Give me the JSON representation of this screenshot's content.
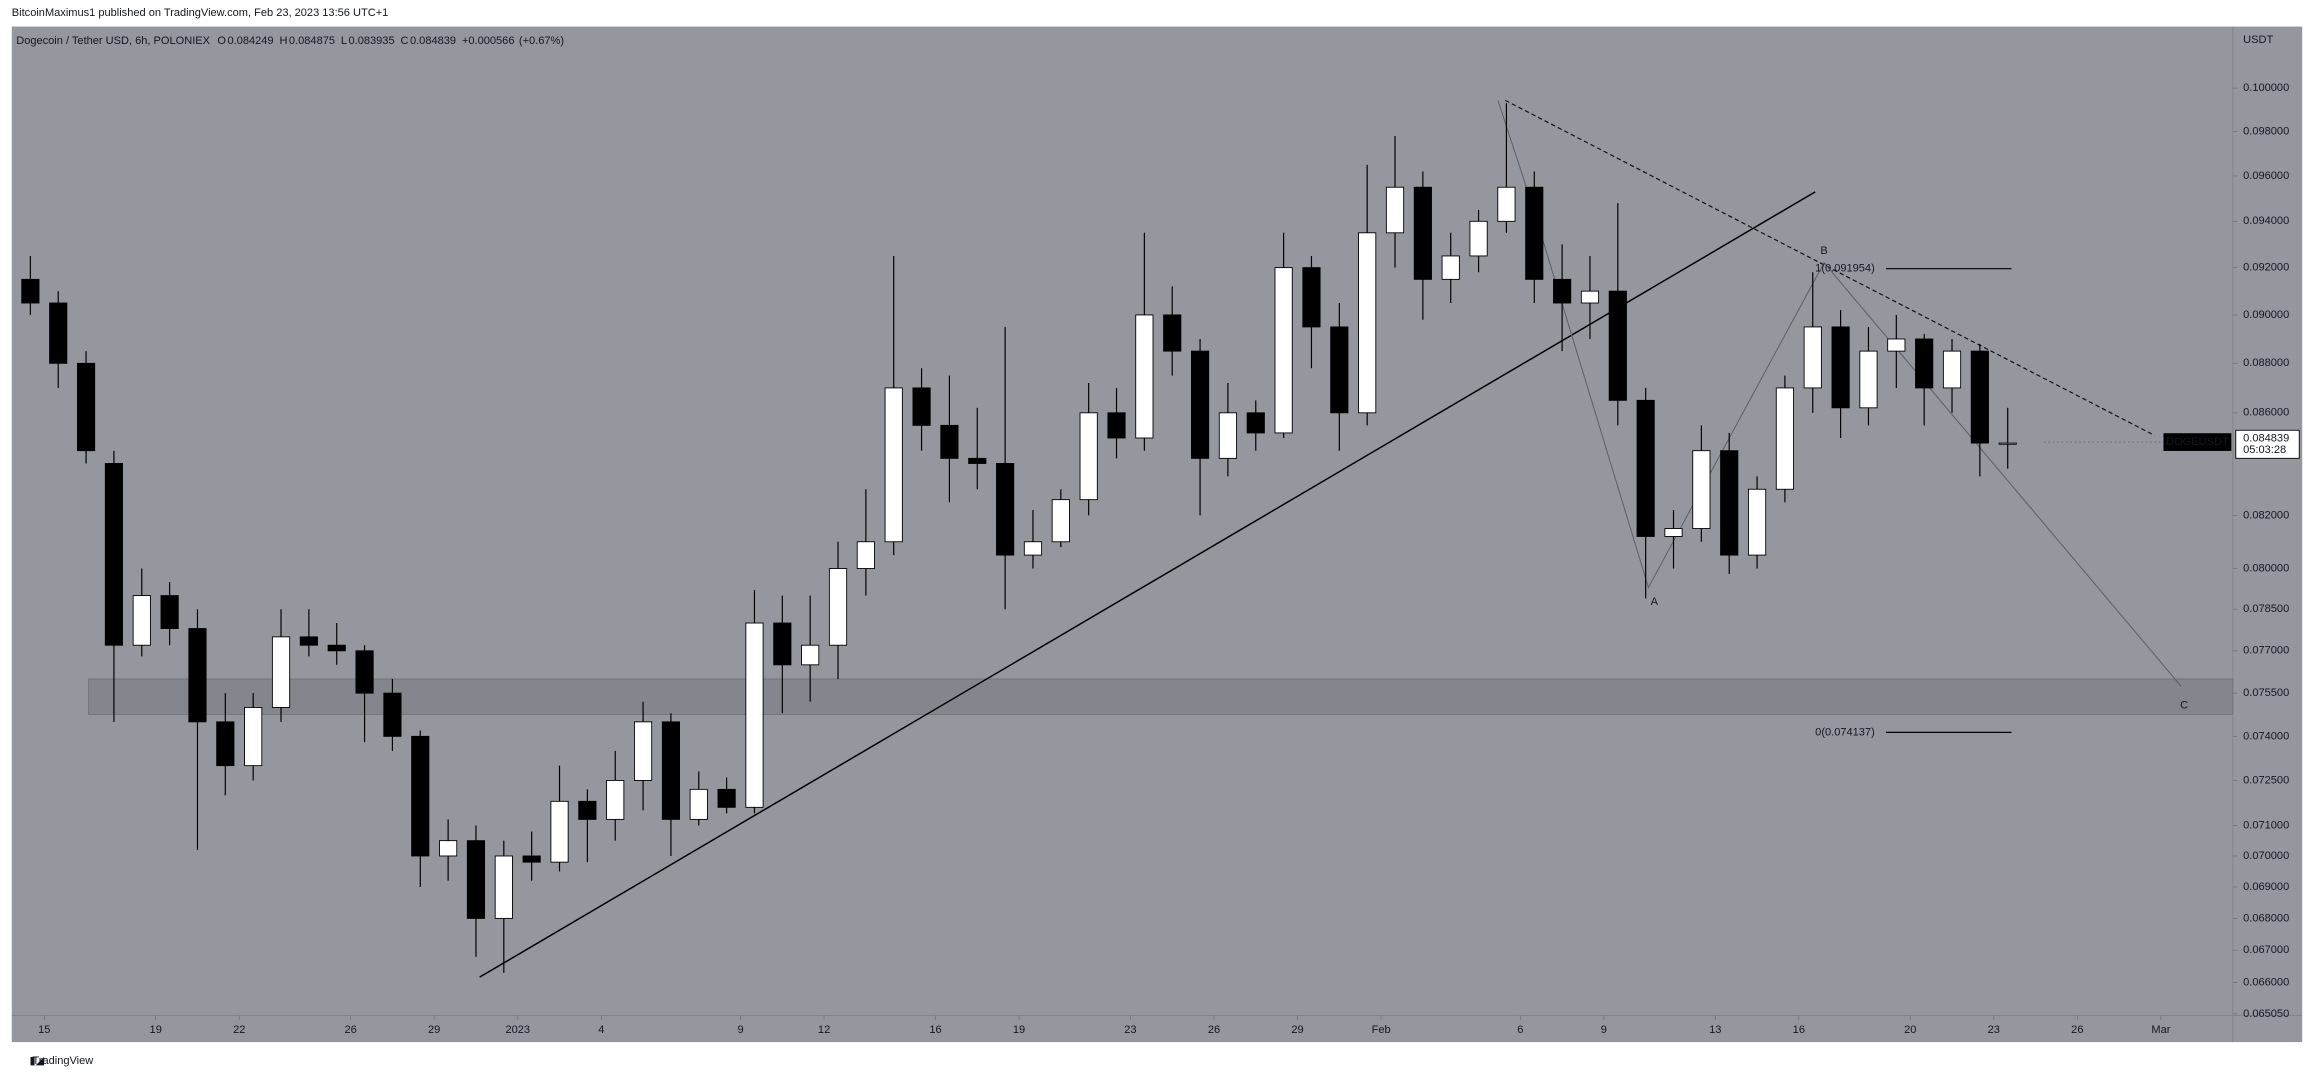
{
  "header": "BitcoinMaximus1 published on TradingView.com, Feb 23, 2023 13:56 UTC+1",
  "footer_logo": "TradingView",
  "chart_data": {
    "type": "candlestick",
    "title": "Dogecoin / Tether USD, 6h, POLONIEX",
    "ohlc_legend": [
      {
        "label": "O",
        "value": 0.084249
      },
      {
        "label": "H",
        "value": 0.084875
      },
      {
        "label": "L",
        "value": 0.083935
      },
      {
        "label": "C",
        "value": 0.084839
      }
    ],
    "change": {
      "value": 0.000566,
      "label": "+0.000566"
    },
    "change_pct": {
      "value": 0.67,
      "label": "(+0.67%)"
    },
    "y_unit": "USDT",
    "symbol_label": "DOGEUSDT",
    "last_price": 0.084839,
    "countdown": "05:03:28",
    "log_scale": true,
    "up_color": "#ffffff",
    "down_color": "#000000",
    "x": [
      "2022-12-14",
      "2022-12-15",
      "2022-12-16",
      "2022-12-17",
      "2022-12-18",
      "2022-12-19",
      "2022-12-20",
      "2022-12-21",
      "2022-12-22",
      "2022-12-23",
      "2022-12-24",
      "2022-12-25",
      "2022-12-26",
      "2022-12-27",
      "2022-12-28",
      "2022-12-29",
      "2022-12-30",
      "2022-12-31",
      "2023-01-01",
      "2023-01-02",
      "2023-01-03",
      "2023-01-04",
      "2023-01-05",
      "2023-01-06",
      "2023-01-07",
      "2023-01-08",
      "2023-01-09",
      "2023-01-10",
      "2023-01-11",
      "2023-01-12",
      "2023-01-13",
      "2023-01-14",
      "2023-01-15",
      "2023-01-16",
      "2023-01-17",
      "2023-01-18",
      "2023-01-19",
      "2023-01-20",
      "2023-01-21",
      "2023-01-22",
      "2023-01-23",
      "2023-01-24",
      "2023-01-25",
      "2023-01-26",
      "2023-01-27",
      "2023-01-28",
      "2023-01-29",
      "2023-01-30",
      "2023-01-31",
      "2023-02-01",
      "2023-02-02",
      "2023-02-03",
      "2023-02-04",
      "2023-02-05",
      "2023-02-06",
      "2023-02-07",
      "2023-02-08",
      "2023-02-09",
      "2023-02-10",
      "2023-02-11",
      "2023-02-12",
      "2023-02-13",
      "2023-02-14",
      "2023-02-15",
      "2023-02-16",
      "2023-02-17",
      "2023-02-18",
      "2023-02-19",
      "2023-02-20",
      "2023-02-21",
      "2023-02-22",
      "2023-02-23"
    ],
    "open": [
      0.0915,
      0.0905,
      0.088,
      0.084,
      0.0772,
      0.079,
      0.0778,
      0.0745,
      0.073,
      0.075,
      0.0775,
      0.0772,
      0.077,
      0.0755,
      0.074,
      0.07,
      0.0705,
      0.068,
      0.07,
      0.0698,
      0.0718,
      0.0712,
      0.0725,
      0.0745,
      0.0712,
      0.0722,
      0.0716,
      0.078,
      0.0765,
      0.0772,
      0.08,
      0.081,
      0.087,
      0.0855,
      0.0842,
      0.084,
      0.0805,
      0.081,
      0.0826,
      0.086,
      0.085,
      0.09,
      0.0885,
      0.0842,
      0.086,
      0.0852,
      0.092,
      0.0895,
      0.086,
      0.0935,
      0.0955,
      0.0915,
      0.0925,
      0.094,
      0.0955,
      0.0915,
      0.0905,
      0.091,
      0.0865,
      0.0812,
      0.0815,
      0.0845,
      0.0805,
      0.083,
      0.087,
      0.0895,
      0.0862,
      0.0885,
      0.089,
      0.087,
      0.0885,
      0.0848
    ],
    "high": [
      0.0925,
      0.091,
      0.0885,
      0.0845,
      0.08,
      0.0795,
      0.0785,
      0.0755,
      0.0755,
      0.0785,
      0.0785,
      0.078,
      0.0772,
      0.076,
      0.0742,
      0.0712,
      0.071,
      0.0705,
      0.0708,
      0.073,
      0.0722,
      0.0735,
      0.0752,
      0.0748,
      0.0728,
      0.0726,
      0.0792,
      0.079,
      0.079,
      0.081,
      0.083,
      0.0925,
      0.0878,
      0.0875,
      0.0862,
      0.0895,
      0.0822,
      0.083,
      0.0872,
      0.087,
      0.0935,
      0.0912,
      0.089,
      0.0872,
      0.0865,
      0.0935,
      0.0925,
      0.0905,
      0.0965,
      0.0978,
      0.0962,
      0.0935,
      0.0945,
      0.0993,
      0.0962,
      0.093,
      0.0925,
      0.0948,
      0.087,
      0.0822,
      0.0855,
      0.0852,
      0.0835,
      0.0875,
      0.0918,
      0.0902,
      0.0895,
      0.09,
      0.0892,
      0.089,
      0.0888,
      0.0862
    ],
    "low": [
      0.09,
      0.087,
      0.084,
      0.0745,
      0.0768,
      0.0772,
      0.0702,
      0.072,
      0.0725,
      0.0745,
      0.0768,
      0.0765,
      0.0738,
      0.0735,
      0.069,
      0.0692,
      0.0668,
      0.0663,
      0.0692,
      0.0695,
      0.0698,
      0.0705,
      0.0715,
      0.07,
      0.071,
      0.0714,
      0.0714,
      0.0748,
      0.0752,
      0.076,
      0.079,
      0.0805,
      0.0845,
      0.0825,
      0.083,
      0.0785,
      0.08,
      0.0808,
      0.082,
      0.0842,
      0.0845,
      0.0875,
      0.082,
      0.0835,
      0.0845,
      0.085,
      0.0878,
      0.0845,
      0.0855,
      0.092,
      0.0898,
      0.0905,
      0.0918,
      0.0935,
      0.0905,
      0.0885,
      0.089,
      0.0855,
      0.0789,
      0.08,
      0.081,
      0.0798,
      0.08,
      0.0825,
      0.086,
      0.085,
      0.0855,
      0.087,
      0.0855,
      0.086,
      0.0835,
      0.0838
    ],
    "close": [
      0.0905,
      0.088,
      0.0845,
      0.0772,
      0.079,
      0.0778,
      0.0745,
      0.073,
      0.075,
      0.0775,
      0.0772,
      0.077,
      0.0755,
      0.074,
      0.07,
      0.0705,
      0.068,
      0.07,
      0.0698,
      0.0718,
      0.0712,
      0.0725,
      0.0745,
      0.0712,
      0.0722,
      0.0716,
      0.078,
      0.0765,
      0.0772,
      0.08,
      0.081,
      0.087,
      0.0855,
      0.0842,
      0.084,
      0.0805,
      0.081,
      0.0826,
      0.086,
      0.085,
      0.09,
      0.0885,
      0.0842,
      0.086,
      0.0852,
      0.092,
      0.0895,
      0.086,
      0.0935,
      0.0955,
      0.0915,
      0.0925,
      0.094,
      0.0955,
      0.0915,
      0.0905,
      0.091,
      0.0865,
      0.0812,
      0.0815,
      0.0845,
      0.0805,
      0.083,
      0.087,
      0.0895,
      0.0862,
      0.0885,
      0.089,
      0.087,
      0.0885,
      0.0848,
      0.0848
    ],
    "xlim": [
      "2022-12-13T20:00",
      "2023-03-03T14:00"
    ],
    "xticks": [
      {
        "value": "2022-12-15",
        "label": "15"
      },
      {
        "value": "2022-12-19",
        "label": "19"
      },
      {
        "value": "2022-12-22",
        "label": "22"
      },
      {
        "value": "2022-12-26",
        "label": "26"
      },
      {
        "value": "2022-12-29",
        "label": "29"
      },
      {
        "value": "2023-01-01",
        "label": "2023"
      },
      {
        "value": "2023-01-04",
        "label": "4"
      },
      {
        "value": "2023-01-09",
        "label": "9"
      },
      {
        "value": "2023-01-12",
        "label": "12"
      },
      {
        "value": "2023-01-16",
        "label": "16"
      },
      {
        "value": "2023-01-19",
        "label": "19"
      },
      {
        "value": "2023-01-23",
        "label": "23"
      },
      {
        "value": "2023-01-26",
        "label": "26"
      },
      {
        "value": "2023-01-29",
        "label": "29"
      },
      {
        "value": "2023-02-01",
        "label": "Feb"
      },
      {
        "value": "2023-02-06",
        "label": "6"
      },
      {
        "value": "2023-02-09",
        "label": "9"
      },
      {
        "value": "2023-02-13",
        "label": "13"
      },
      {
        "value": "2023-02-16",
        "label": "16"
      },
      {
        "value": "2023-02-20",
        "label": "20"
      },
      {
        "value": "2023-02-23",
        "label": "23"
      },
      {
        "value": "2023-02-26",
        "label": "26"
      },
      {
        "value": "2023-03-01",
        "label": "Mar"
      }
    ],
    "ylim": [
      0.065,
      0.1029
    ],
    "yticks": [
      {
        "value": 0.1,
        "label": "0.100000"
      },
      {
        "value": 0.098,
        "label": "0.098000"
      },
      {
        "value": 0.096,
        "label": "0.096000"
      },
      {
        "value": 0.094,
        "label": "0.094000"
      },
      {
        "value": 0.092,
        "label": "0.092000"
      },
      {
        "value": 0.09,
        "label": "0.090000"
      },
      {
        "value": 0.088,
        "label": "0.088000"
      },
      {
        "value": 0.086,
        "label": "0.086000"
      },
      {
        "value": 0.082,
        "label": "0.082000"
      },
      {
        "value": 0.08,
        "label": "0.080000"
      },
      {
        "value": 0.0785,
        "label": "0.078500"
      },
      {
        "value": 0.077,
        "label": "0.077000"
      },
      {
        "value": 0.0755,
        "label": "0.075500"
      },
      {
        "value": 0.074,
        "label": "0.074000"
      },
      {
        "value": 0.0725,
        "label": "0.072500"
      },
      {
        "value": 0.071,
        "label": "0.071000"
      },
      {
        "value": 0.07,
        "label": "0.070000"
      },
      {
        "value": 0.069,
        "label": "0.069000"
      },
      {
        "value": 0.068,
        "label": "0.068000"
      },
      {
        "value": 0.067,
        "label": "0.067000"
      },
      {
        "value": 0.066,
        "label": "0.066000"
      },
      {
        "value": 0.06505,
        "label": "0.065050"
      }
    ],
    "fib_levels": [
      {
        "value": 0.091954,
        "label": "1(0.091954)"
      },
      {
        "value": 0.074137,
        "label": "0(0.074137)"
      }
    ],
    "wave_labels": [
      "A",
      "B",
      "C"
    ]
  }
}
